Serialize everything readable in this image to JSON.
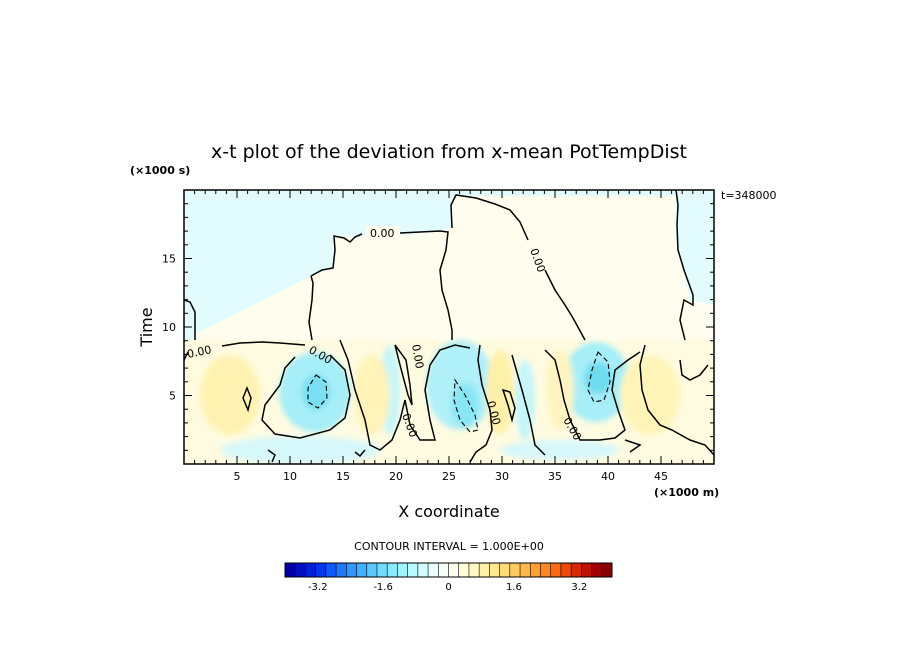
{
  "chart_data": {
    "type": "heatmap",
    "title": "x-t plot of the deviation from x-mean PotTempDist",
    "xlabel": "X coordinate",
    "ylabel": "Time",
    "x_units": "(×1000 m)",
    "y_units": "(×1000 s)",
    "time_label": "t=348000",
    "xlim": [
      0,
      50
    ],
    "ylim": [
      0,
      20
    ],
    "x_ticks": [
      5,
      10,
      15,
      20,
      25,
      30,
      35,
      40,
      45
    ],
    "y_ticks": [
      5,
      10,
      15
    ],
    "contour_interval_label": "CONTOUR INTERVAL = 1.000E+00",
    "contour_label": "0.00",
    "colorbar": {
      "min": -4,
      "max": 4,
      "tick_labels": [
        "-3.2",
        "-1.6",
        "0",
        "1.6",
        "3.2"
      ],
      "tick_values": [
        -3.2,
        -1.6,
        0,
        1.6,
        3.2
      ],
      "colors": [
        "#0000a8",
        "#0010c0",
        "#0020d8",
        "#0038f0",
        "#1058ff",
        "#2078ff",
        "#3098ff",
        "#40b0ff",
        "#58c8ff",
        "#70dcff",
        "#88ecff",
        "#a0f4ff",
        "#b8faff",
        "#d0fcff",
        "#e8fefe",
        "#f4fff8",
        "#fffff0",
        "#fffcd8",
        "#fff8c0",
        "#fff2a8",
        "#ffe890",
        "#ffdc78",
        "#ffcc60",
        "#ffb848",
        "#ffa030",
        "#ff8820",
        "#ff6810",
        "#f04808",
        "#d82800",
        "#c01000",
        "#a00000",
        "#880000"
      ]
    }
  }
}
